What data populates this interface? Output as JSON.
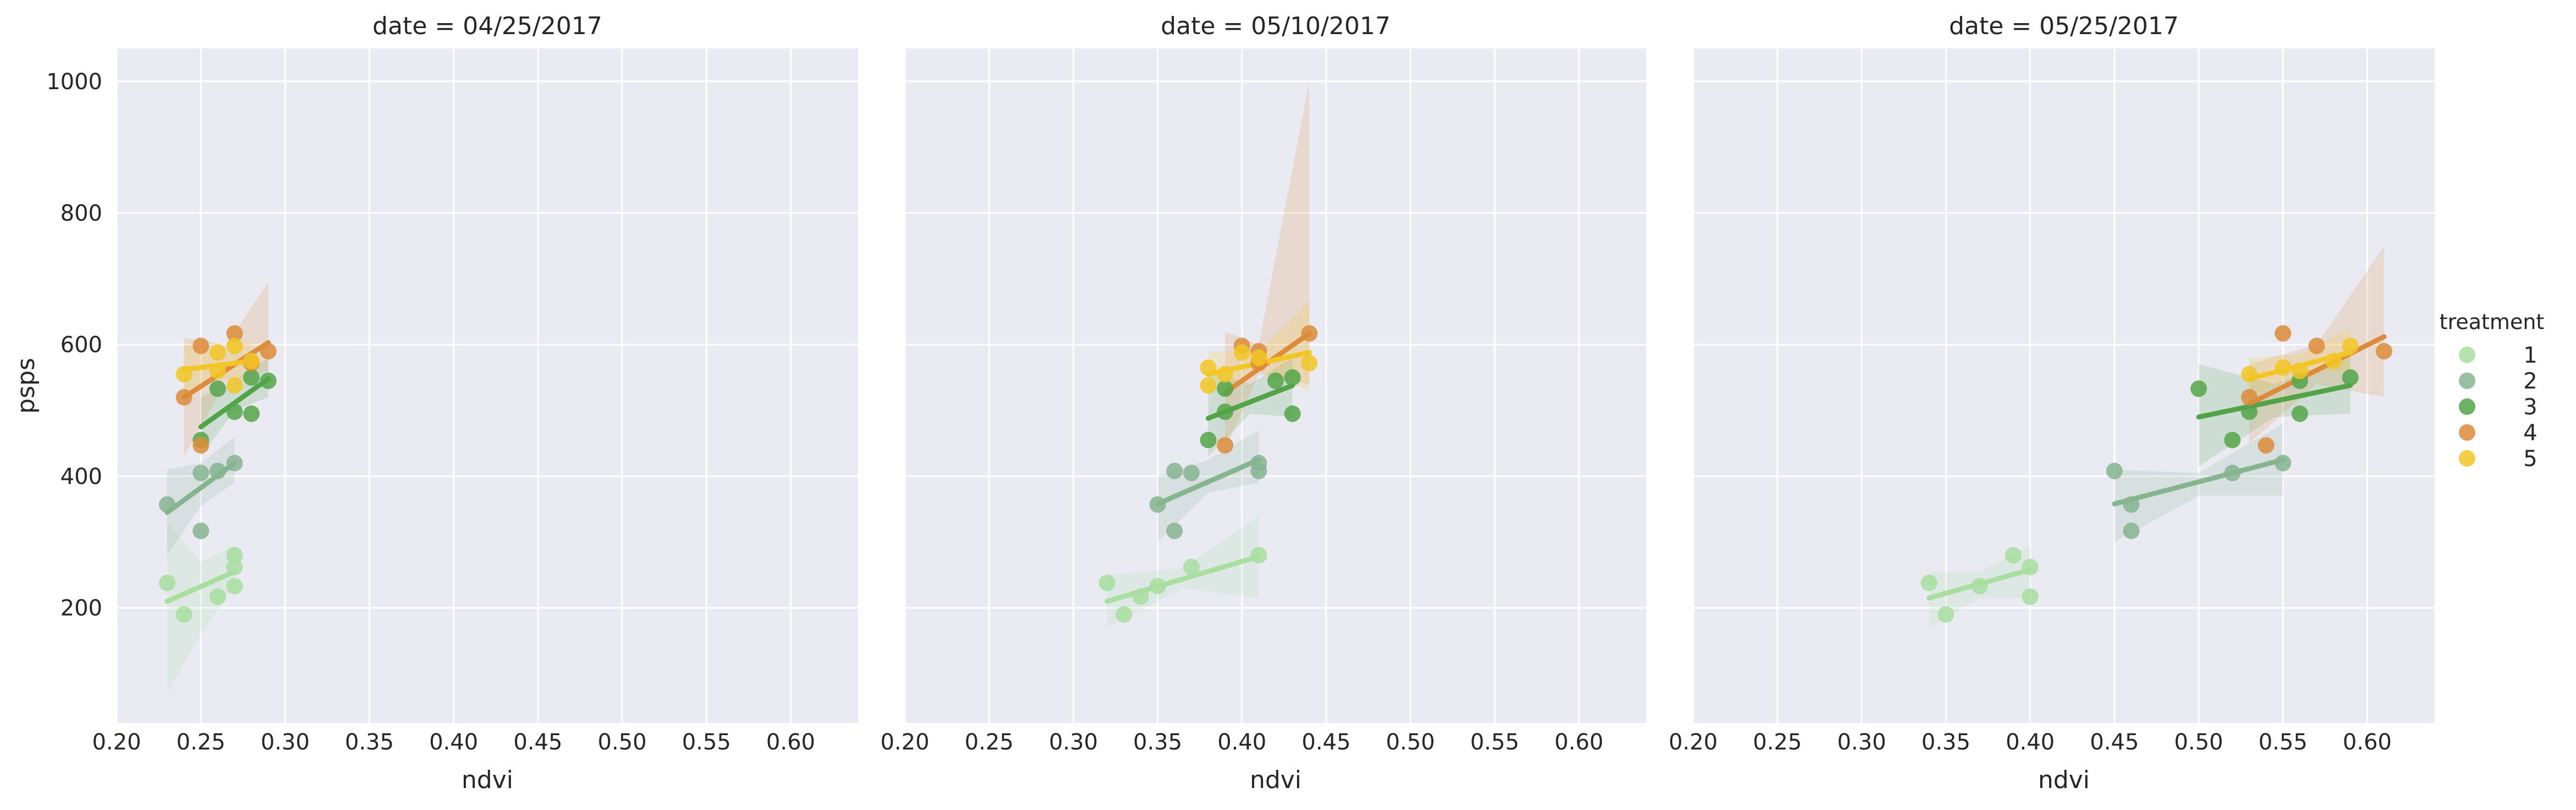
{
  "chart_data": {
    "type": "scatter",
    "layout": "facet-grid with linear regression fits and confidence bands",
    "facet_label": "date",
    "facets": [
      {
        "title": "date = 04/25/2017",
        "series": [
          {
            "name": "1",
            "points": [
              [
                0.23,
                238
              ],
              [
                0.24,
                190
              ],
              [
                0.26,
                217
              ],
              [
                0.27,
                280
              ],
              [
                0.27,
                262
              ],
              [
                0.27,
                233
              ]
            ],
            "fit": [
              [
                0.23,
                210
              ],
              [
                0.27,
                255
              ]
            ],
            "band": [
              [
                0.23,
                70,
                330
              ],
              [
                0.25,
                160,
                270
              ],
              [
                0.27,
                235,
                295
              ]
            ]
          },
          {
            "name": "2",
            "points": [
              [
                0.23,
                357
              ],
              [
                0.25,
                317
              ],
              [
                0.25,
                405
              ],
              [
                0.26,
                408
              ],
              [
                0.27,
                420
              ]
            ],
            "fit": [
              [
                0.23,
                345
              ],
              [
                0.27,
                420
              ]
            ],
            "band": [
              [
                0.23,
                280,
                410
              ],
              [
                0.25,
                355,
                420
              ],
              [
                0.27,
                390,
                460
              ]
            ]
          },
          {
            "name": "3",
            "points": [
              [
                0.25,
                455
              ],
              [
                0.26,
                533
              ],
              [
                0.27,
                498
              ],
              [
                0.28,
                495
              ],
              [
                0.28,
                550
              ],
              [
                0.29,
                545
              ]
            ],
            "fit": [
              [
                0.25,
                475
              ],
              [
                0.29,
                548
              ]
            ],
            "band": [
              [
                0.25,
                430,
                520
              ],
              [
                0.27,
                500,
                545
              ],
              [
                0.29,
                520,
                580
              ]
            ]
          },
          {
            "name": "4",
            "points": [
              [
                0.24,
                520
              ],
              [
                0.25,
                447
              ],
              [
                0.25,
                598
              ],
              [
                0.27,
                617
              ],
              [
                0.28,
                572
              ],
              [
                0.29,
                590
              ]
            ],
            "fit": [
              [
                0.24,
                520
              ],
              [
                0.29,
                603
              ]
            ],
            "band": [
              [
                0.24,
                430,
                610
              ],
              [
                0.265,
                545,
                600
              ],
              [
                0.29,
                560,
                695
              ]
            ]
          },
          {
            "name": "5",
            "points": [
              [
                0.24,
                555
              ],
              [
                0.26,
                588
              ],
              [
                0.26,
                560
              ],
              [
                0.27,
                538
              ],
              [
                0.27,
                598
              ],
              [
                0.28,
                575
              ]
            ],
            "fit": [
              [
                0.24,
                562
              ],
              [
                0.28,
                575
              ]
            ],
            "band": [
              [
                0.24,
                520,
                600
              ],
              [
                0.26,
                550,
                590
              ],
              [
                0.28,
                545,
                605
              ]
            ]
          }
        ]
      },
      {
        "title": "date = 05/10/2017",
        "series": [
          {
            "name": "1",
            "points": [
              [
                0.32,
                238
              ],
              [
                0.33,
                190
              ],
              [
                0.34,
                217
              ],
              [
                0.35,
                233
              ],
              [
                0.37,
                262
              ],
              [
                0.41,
                280
              ]
            ],
            "fit": [
              [
                0.32,
                210
              ],
              [
                0.41,
                278
              ]
            ],
            "band": [
              [
                0.32,
                170,
                250
              ],
              [
                0.365,
                230,
                260
              ],
              [
                0.41,
                215,
                340
              ]
            ]
          },
          {
            "name": "2",
            "points": [
              [
                0.35,
                357
              ],
              [
                0.36,
                317
              ],
              [
                0.36,
                408
              ],
              [
                0.37,
                405
              ],
              [
                0.41,
                420
              ],
              [
                0.41,
                408
              ]
            ],
            "fit": [
              [
                0.35,
                358
              ],
              [
                0.41,
                425
              ]
            ],
            "band": [
              [
                0.35,
                300,
                400
              ],
              [
                0.38,
                375,
                425
              ],
              [
                0.41,
                390,
                470
              ]
            ]
          },
          {
            "name": "3",
            "points": [
              [
                0.38,
                455
              ],
              [
                0.39,
                533
              ],
              [
                0.39,
                498
              ],
              [
                0.42,
                545
              ],
              [
                0.43,
                550
              ],
              [
                0.43,
                495
              ]
            ],
            "fit": [
              [
                0.38,
                488
              ],
              [
                0.43,
                538
              ]
            ],
            "band": [
              [
                0.38,
                430,
                560
              ],
              [
                0.405,
                495,
                540
              ],
              [
                0.43,
                490,
                580
              ]
            ]
          },
          {
            "name": "4",
            "points": [
              [
                0.39,
                447
              ],
              [
                0.4,
                598
              ],
              [
                0.41,
                572
              ],
              [
                0.41,
                590
              ],
              [
                0.44,
                617
              ]
            ],
            "fit": [
              [
                0.39,
                527
              ],
              [
                0.44,
                617
              ]
            ],
            "band": [
              [
                0.39,
                440,
                620
              ],
              [
                0.41,
                555,
                600
              ],
              [
                0.44,
                540,
                1000
              ]
            ]
          },
          {
            "name": "5",
            "points": [
              [
                0.38,
                565
              ],
              [
                0.38,
                538
              ],
              [
                0.39,
                555
              ],
              [
                0.4,
                588
              ],
              [
                0.41,
                580
              ],
              [
                0.44,
                572
              ]
            ],
            "fit": [
              [
                0.38,
                555
              ],
              [
                0.44,
                588
              ]
            ],
            "band": [
              [
                0.38,
                525,
                590
              ],
              [
                0.41,
                560,
                590
              ],
              [
                0.44,
                530,
                665
              ]
            ]
          }
        ]
      },
      {
        "title": "date = 05/25/2017",
        "series": [
          {
            "name": "1",
            "points": [
              [
                0.34,
                238
              ],
              [
                0.35,
                190
              ],
              [
                0.37,
                233
              ],
              [
                0.39,
                280
              ],
              [
                0.4,
                262
              ],
              [
                0.4,
                217
              ]
            ],
            "fit": [
              [
                0.34,
                215
              ],
              [
                0.4,
                258
              ]
            ],
            "band": [
              [
                0.34,
                170,
                255
              ],
              [
                0.37,
                215,
                255
              ],
              [
                0.4,
                215,
                295
              ]
            ]
          },
          {
            "name": "2",
            "points": [
              [
                0.45,
                408
              ],
              [
                0.46,
                357
              ],
              [
                0.46,
                317
              ],
              [
                0.52,
                405
              ],
              [
                0.55,
                420
              ]
            ],
            "fit": [
              [
                0.45,
                358
              ],
              [
                0.55,
                425
              ]
            ],
            "band": [
              [
                0.45,
                300,
                410
              ],
              [
                0.5,
                370,
                405
              ],
              [
                0.55,
                370,
                480
              ]
            ]
          },
          {
            "name": "3",
            "points": [
              [
                0.5,
                533
              ],
              [
                0.52,
                455
              ],
              [
                0.53,
                498
              ],
              [
                0.56,
                545
              ],
              [
                0.56,
                495
              ],
              [
                0.59,
                550
              ]
            ],
            "fit": [
              [
                0.5,
                490
              ],
              [
                0.59,
                538
              ]
            ],
            "band": [
              [
                0.5,
                415,
                570
              ],
              [
                0.545,
                490,
                540
              ],
              [
                0.59,
                495,
                585
              ]
            ]
          },
          {
            "name": "4",
            "points": [
              [
                0.53,
                520
              ],
              [
                0.54,
                447
              ],
              [
                0.55,
                617
              ],
              [
                0.57,
                598
              ],
              [
                0.61,
                590
              ]
            ],
            "fit": [
              [
                0.53,
                510
              ],
              [
                0.61,
                612
              ]
            ],
            "band": [
              [
                0.53,
                450,
                570
              ],
              [
                0.57,
                540,
                600
              ],
              [
                0.61,
                520,
                750
              ]
            ]
          },
          {
            "name": "5",
            "points": [
              [
                0.53,
                555
              ],
              [
                0.55,
                565
              ],
              [
                0.56,
                560
              ],
              [
                0.58,
                575
              ],
              [
                0.59,
                598
              ]
            ],
            "fit": [
              [
                0.53,
                548
              ],
              [
                0.59,
                588
              ]
            ],
            "band": [
              [
                0.53,
                520,
                580
              ],
              [
                0.56,
                555,
                585
              ],
              [
                0.59,
                560,
                625
              ]
            ]
          }
        ]
      }
    ],
    "xlabel": "ndvi",
    "ylabel": "psps",
    "xlim": [
      0.2,
      0.64
    ],
    "ylim": [
      25,
      1050
    ],
    "xticks": [
      "0.20",
      "0.25",
      "0.30",
      "0.35",
      "0.40",
      "0.45",
      "0.50",
      "0.55",
      "0.60"
    ],
    "xtick_values": [
      0.2,
      0.25,
      0.3,
      0.35,
      0.4,
      0.45,
      0.5,
      0.55,
      0.6
    ],
    "yticks": [
      "200",
      "400",
      "600",
      "800",
      "1000"
    ],
    "ytick_values": [
      200,
      400,
      600,
      800,
      1000
    ],
    "grid": true,
    "legend": {
      "title": "treatment",
      "placement": "right",
      "entries": [
        "1",
        "2",
        "3",
        "4",
        "5"
      ]
    },
    "colors": {
      "1": "#a8dea0",
      "2": "#86b48f",
      "3": "#53a449",
      "4": "#dc8c3a",
      "5": "#f2c624"
    },
    "background": "#eaeaf2"
  }
}
